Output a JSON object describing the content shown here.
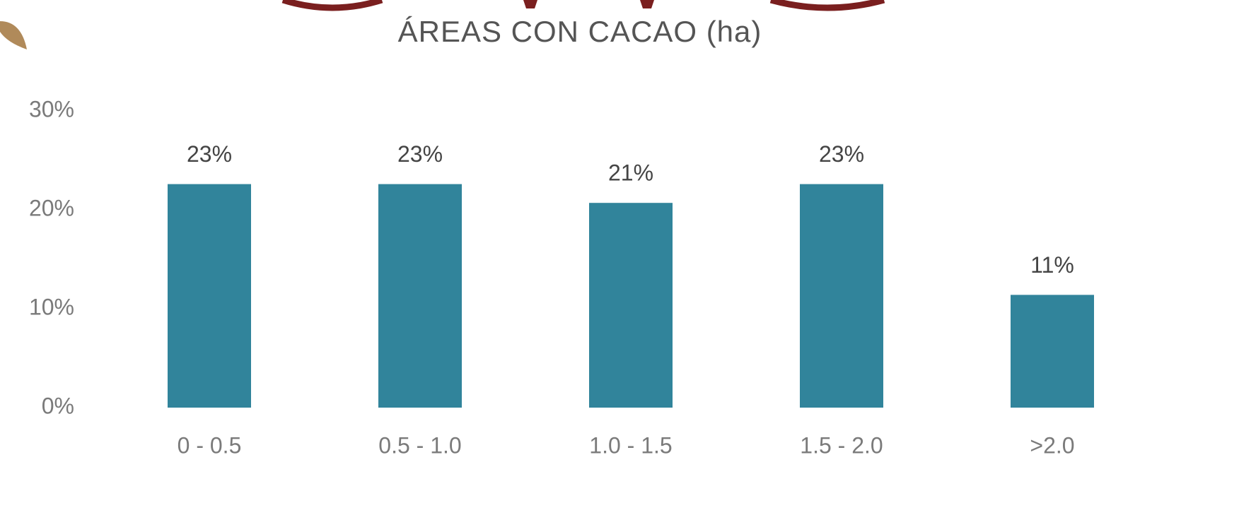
{
  "chart_data": {
    "type": "bar",
    "title": "ÁREAS CON CACAO (ha)",
    "categories": [
      "0 - 0.5",
      "0.5 - 1.0",
      "1.0 - 1.5",
      "1.5 - 2.0",
      ">2.0"
    ],
    "values": [
      22.6,
      22.6,
      20.7,
      22.6,
      11.4
    ],
    "value_labels": [
      "23%",
      "23%",
      "21%",
      "23%",
      "11%"
    ],
    "color": "#31849b",
    "ylim": [
      0,
      30
    ],
    "yticks": [
      {
        "value": 0,
        "label": "0%"
      },
      {
        "value": 10,
        "label": "10%"
      },
      {
        "value": 20,
        "label": "20%"
      },
      {
        "value": 30,
        "label": "30%"
      }
    ],
    "grid": false
  }
}
